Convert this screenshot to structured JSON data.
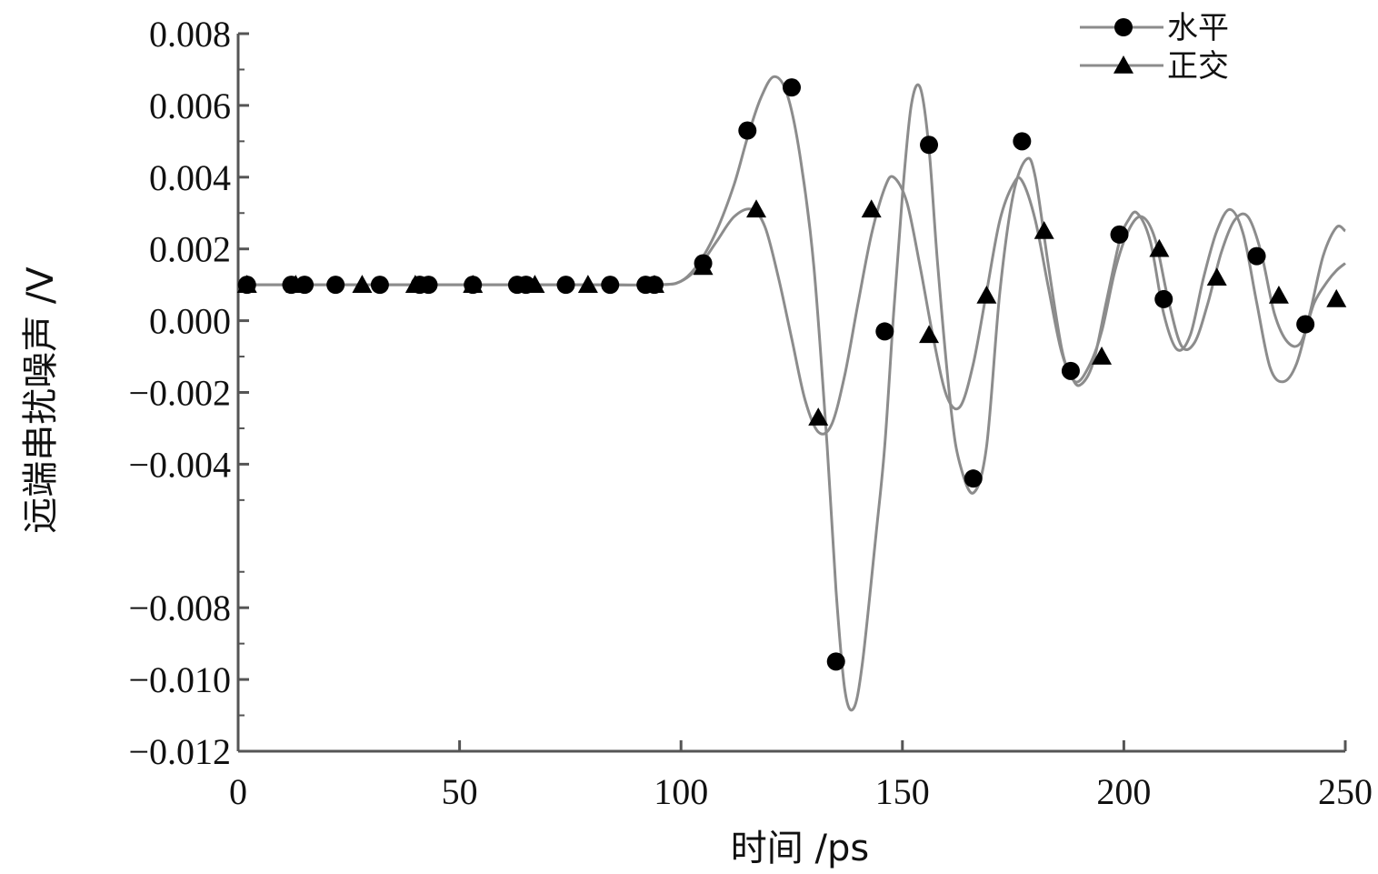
{
  "chart_data": {
    "type": "line",
    "title": "",
    "xlabel": "时间 /ps",
    "ylabel": "远端串扰噪声 /V",
    "xlim": [
      0,
      250
    ],
    "ylim": [
      -0.012,
      0.008
    ],
    "x_ticks": [
      0,
      50,
      100,
      150,
      200,
      250
    ],
    "y_tick_values": [
      0.008,
      0.006,
      0.004,
      0.002,
      0.0,
      -0.002,
      -0.004,
      -0.008,
      -0.01,
      -0.012
    ],
    "y_tick_labels": [
      "0.008",
      "0.006",
      "0.004",
      "0.002",
      "0.000",
      "−0.002",
      "−0.004",
      "−0.008",
      "−0.010",
      "−0.012"
    ],
    "grid": false,
    "legend_position": "top-right",
    "line_color": "#8c8c8c",
    "marker_color": "#000000",
    "series": [
      {
        "name": "水平",
        "marker": "circle",
        "curve": [
          [
            0,
            0.001
          ],
          [
            20,
            0.001
          ],
          [
            40,
            0.001
          ],
          [
            60,
            0.001
          ],
          [
            80,
            0.001
          ],
          [
            95,
            0.001
          ],
          [
            100,
            0.0011
          ],
          [
            104,
            0.0016
          ],
          [
            108,
            0.0025
          ],
          [
            112,
            0.0038
          ],
          [
            115,
            0.0051
          ],
          [
            118,
            0.0062
          ],
          [
            121,
            0.0068
          ],
          [
            124,
            0.0063
          ],
          [
            127,
            0.0045
          ],
          [
            130,
            0.0015
          ],
          [
            133,
            -0.0035
          ],
          [
            135,
            -0.0075
          ],
          [
            137,
            -0.0103
          ],
          [
            139,
            -0.0108
          ],
          [
            141,
            -0.0095
          ],
          [
            144,
            -0.006
          ],
          [
            146,
            -0.0035
          ],
          [
            148,
            0.0002
          ],
          [
            150,
            0.0035
          ],
          [
            152,
            0.006
          ],
          [
            154,
            0.0065
          ],
          [
            156,
            0.0048
          ],
          [
            158,
            0.0015
          ],
          [
            161,
            -0.0025
          ],
          [
            163,
            -0.004
          ],
          [
            166,
            -0.0048
          ],
          [
            169,
            -0.0035
          ],
          [
            172,
            0.0008
          ],
          [
            175,
            0.0035
          ],
          [
            178,
            0.0045
          ],
          [
            180,
            0.004
          ],
          [
            183,
            0.0015
          ],
          [
            186,
            -0.0008
          ],
          [
            188,
            -0.0015
          ],
          [
            190,
            -0.0018
          ],
          [
            193,
            -0.0012
          ],
          [
            196,
            0.0005
          ],
          [
            199,
            0.0022
          ],
          [
            201,
            0.0028
          ],
          [
            203,
            0.003
          ],
          [
            206,
            0.0022
          ],
          [
            209,
            0.0002
          ],
          [
            212,
            -0.0008
          ],
          [
            215,
            -0.0004
          ],
          [
            218,
            0.0012
          ],
          [
            221,
            0.0025
          ],
          [
            224,
            0.0031
          ],
          [
            227,
            0.0024
          ],
          [
            230,
            0.0005
          ],
          [
            233,
            -0.0013
          ],
          [
            236,
            -0.0017
          ],
          [
            239,
            -0.0012
          ],
          [
            242,
            0.0002
          ],
          [
            245,
            0.0018
          ],
          [
            248,
            0.0026
          ],
          [
            250,
            0.0025
          ]
        ],
        "markers": [
          [
            2,
            0.001
          ],
          [
            12,
            0.001
          ],
          [
            15,
            0.001
          ],
          [
            22,
            0.001
          ],
          [
            32,
            0.001
          ],
          [
            41,
            0.001
          ],
          [
            43,
            0.001
          ],
          [
            53,
            0.001
          ],
          [
            63,
            0.001
          ],
          [
            65,
            0.001
          ],
          [
            74,
            0.001
          ],
          [
            84,
            0.001
          ],
          [
            92,
            0.001
          ],
          [
            94,
            0.001
          ],
          [
            105,
            0.0016
          ],
          [
            115,
            0.0053
          ],
          [
            125,
            0.0065
          ],
          [
            135,
            -0.0095
          ],
          [
            146,
            -0.0003
          ],
          [
            156,
            0.0049
          ],
          [
            166,
            -0.0044
          ],
          [
            177,
            0.005
          ],
          [
            188,
            -0.0014
          ],
          [
            199,
            0.0024
          ],
          [
            209,
            0.0006
          ],
          [
            230,
            0.0018
          ],
          [
            241,
            -0.0001
          ]
        ]
      },
      {
        "name": "正交",
        "marker": "triangle",
        "curve": [
          [
            0,
            0.001
          ],
          [
            20,
            0.001
          ],
          [
            40,
            0.001
          ],
          [
            60,
            0.001
          ],
          [
            80,
            0.001
          ],
          [
            95,
            0.001
          ],
          [
            100,
            0.0011
          ],
          [
            104,
            0.0015
          ],
          [
            108,
            0.0022
          ],
          [
            112,
            0.0029
          ],
          [
            116,
            0.0031
          ],
          [
            119,
            0.0026
          ],
          [
            122,
            0.0012
          ],
          [
            125,
            -0.0005
          ],
          [
            128,
            -0.0022
          ],
          [
            131,
            -0.0031
          ],
          [
            134,
            -0.0029
          ],
          [
            137,
            -0.0015
          ],
          [
            140,
            0.0005
          ],
          [
            143,
            0.0024
          ],
          [
            146,
            0.0037
          ],
          [
            148,
            0.004
          ],
          [
            151,
            0.0033
          ],
          [
            154,
            0.0015
          ],
          [
            157,
            -0.0005
          ],
          [
            160,
            -0.0021
          ],
          [
            163,
            -0.0024
          ],
          [
            166,
            -0.0012
          ],
          [
            169,
            0.0008
          ],
          [
            172,
            0.0028
          ],
          [
            175,
            0.0038
          ],
          [
            177,
            0.0039
          ],
          [
            180,
            0.0028
          ],
          [
            183,
            0.0009
          ],
          [
            186,
            -0.0009
          ],
          [
            189,
            -0.0017
          ],
          [
            192,
            -0.0013
          ],
          [
            195,
            -0.0003
          ],
          [
            198,
            0.0014
          ],
          [
            201,
            0.0025
          ],
          [
            204,
            0.0029
          ],
          [
            207,
            0.0023
          ],
          [
            210,
            0.0006
          ],
          [
            213,
            -0.0007
          ],
          [
            216,
            -0.0006
          ],
          [
            219,
            0.0005
          ],
          [
            222,
            0.0019
          ],
          [
            225,
            0.0028
          ],
          [
            228,
            0.0029
          ],
          [
            231,
            0.0019
          ],
          [
            234,
            0.0002
          ],
          [
            237,
            -0.0006
          ],
          [
            240,
            -0.0006
          ],
          [
            243,
            0.0005
          ],
          [
            246,
            0.0011
          ],
          [
            248,
            0.0014
          ],
          [
            250,
            0.0016
          ]
        ],
        "markers": [
          [
            2,
            0.001
          ],
          [
            13,
            0.001
          ],
          [
            28,
            0.001
          ],
          [
            40,
            0.001
          ],
          [
            53,
            0.001
          ],
          [
            67,
            0.001
          ],
          [
            79,
            0.001
          ],
          [
            94,
            0.001
          ],
          [
            105,
            0.0015
          ],
          [
            117,
            0.0031
          ],
          [
            131,
            -0.0027
          ],
          [
            143,
            0.0031
          ],
          [
            156,
            -0.0004
          ],
          [
            169,
            0.0007
          ],
          [
            182,
            0.0025
          ],
          [
            195,
            -0.001
          ],
          [
            208,
            0.002
          ],
          [
            221,
            0.0012
          ],
          [
            235,
            0.0007
          ],
          [
            248,
            0.0006
          ]
        ]
      }
    ]
  }
}
